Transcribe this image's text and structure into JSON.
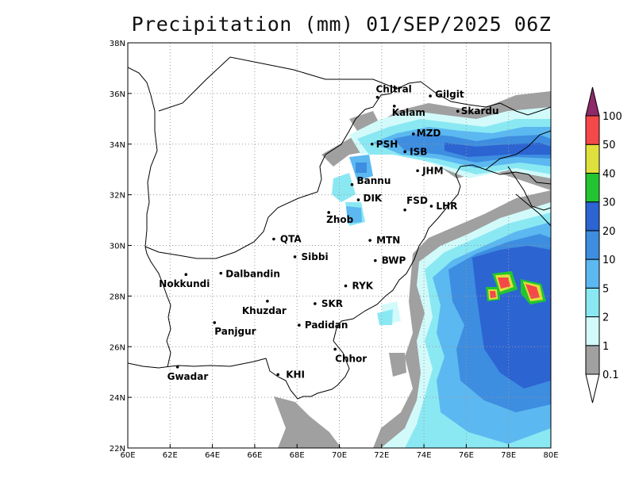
{
  "title": "Precipitation (mm) 01/SEP/2025 06Z",
  "map": {
    "lon_range": [
      60,
      80
    ],
    "lat_range": [
      22,
      38
    ],
    "x_ticks": [
      {
        "lon": 60,
        "label": "60E"
      },
      {
        "lon": 62,
        "label": "62E"
      },
      {
        "lon": 64,
        "label": "64E"
      },
      {
        "lon": 66,
        "label": "66E"
      },
      {
        "lon": 68,
        "label": "68E"
      },
      {
        "lon": 70,
        "label": "70E"
      },
      {
        "lon": 72,
        "label": "72E"
      },
      {
        "lon": 74,
        "label": "74E"
      },
      {
        "lon": 76,
        "label": "76E"
      },
      {
        "lon": 78,
        "label": "78E"
      },
      {
        "lon": 80,
        "label": "80E"
      }
    ],
    "y_ticks": [
      {
        "lat": 22,
        "label": "22N"
      },
      {
        "lat": 24,
        "label": "24N"
      },
      {
        "lat": 26,
        "label": "26N"
      },
      {
        "lat": 28,
        "label": "28N"
      },
      {
        "lat": 30,
        "label": "30N"
      },
      {
        "lat": 32,
        "label": "32N"
      },
      {
        "lat": 34,
        "label": "34N"
      },
      {
        "lat": 36,
        "label": "36N"
      },
      {
        "lat": 38,
        "label": "38N"
      }
    ],
    "grid": true,
    "cities": [
      {
        "name": "Chitral",
        "lon": 71.8,
        "lat": 35.85
      },
      {
        "name": "Gilgit",
        "lon": 74.3,
        "lat": 35.9
      },
      {
        "name": "Kalam",
        "lon": 72.6,
        "lat": 35.5
      },
      {
        "name": "Skardu",
        "lon": 75.6,
        "lat": 35.3
      },
      {
        "name": "MZD",
        "lon": 73.5,
        "lat": 34.4
      },
      {
        "name": "PSH",
        "lon": 71.55,
        "lat": 34.0
      },
      {
        "name": "ISB",
        "lon": 73.1,
        "lat": 33.7
      },
      {
        "name": "JHM",
        "lon": 73.7,
        "lat": 32.95
      },
      {
        "name": "Bannu",
        "lon": 70.6,
        "lat": 32.4
      },
      {
        "name": "DIK",
        "lon": 70.9,
        "lat": 31.8
      },
      {
        "name": "FSD",
        "lon": 73.1,
        "lat": 31.4
      },
      {
        "name": "LHR",
        "lon": 74.35,
        "lat": 31.55
      },
      {
        "name": "Zhob",
        "lon": 69.5,
        "lat": 31.3
      },
      {
        "name": "QTA",
        "lon": 66.9,
        "lat": 30.25
      },
      {
        "name": "MTN",
        "lon": 71.45,
        "lat": 30.2
      },
      {
        "name": "Sibbi",
        "lon": 67.9,
        "lat": 29.55
      },
      {
        "name": "BWP",
        "lon": 71.7,
        "lat": 29.4
      },
      {
        "name": "Dalbandin",
        "lon": 64.4,
        "lat": 28.9
      },
      {
        "name": "Nokkundi",
        "lon": 62.75,
        "lat": 28.85
      },
      {
        "name": "RYK",
        "lon": 70.3,
        "lat": 28.4
      },
      {
        "name": "Khuzdar",
        "lon": 66.6,
        "lat": 27.8
      },
      {
        "name": "SKR",
        "lon": 68.85,
        "lat": 27.7
      },
      {
        "name": "Panjgur",
        "lon": 64.1,
        "lat": 26.95
      },
      {
        "name": "Padidan",
        "lon": 68.1,
        "lat": 26.85
      },
      {
        "name": "Chhor",
        "lon": 69.8,
        "lat": 25.9
      },
      {
        "name": "KHI",
        "lon": 67.1,
        "lat": 24.9
      },
      {
        "name": "Gwadar",
        "lon": 62.35,
        "lat": 25.2
      }
    ]
  },
  "colorbar": {
    "levels": [
      {
        "label": "0.1",
        "color": "#a0a0a0"
      },
      {
        "label": "1",
        "color": "#d2fafa"
      },
      {
        "label": "2",
        "color": "#8ae8f3"
      },
      {
        "label": "5",
        "color": "#5cb8f0"
      },
      {
        "label": "10",
        "color": "#3d8de0"
      },
      {
        "label": "20",
        "color": "#2c64d2"
      },
      {
        "label": "30",
        "color": "#22c52f"
      },
      {
        "label": "40",
        "color": "#e0e03c"
      },
      {
        "label": "50",
        "color": "#f54848"
      },
      {
        "label": "100",
        "color": "#8c2a6a"
      }
    ]
  }
}
